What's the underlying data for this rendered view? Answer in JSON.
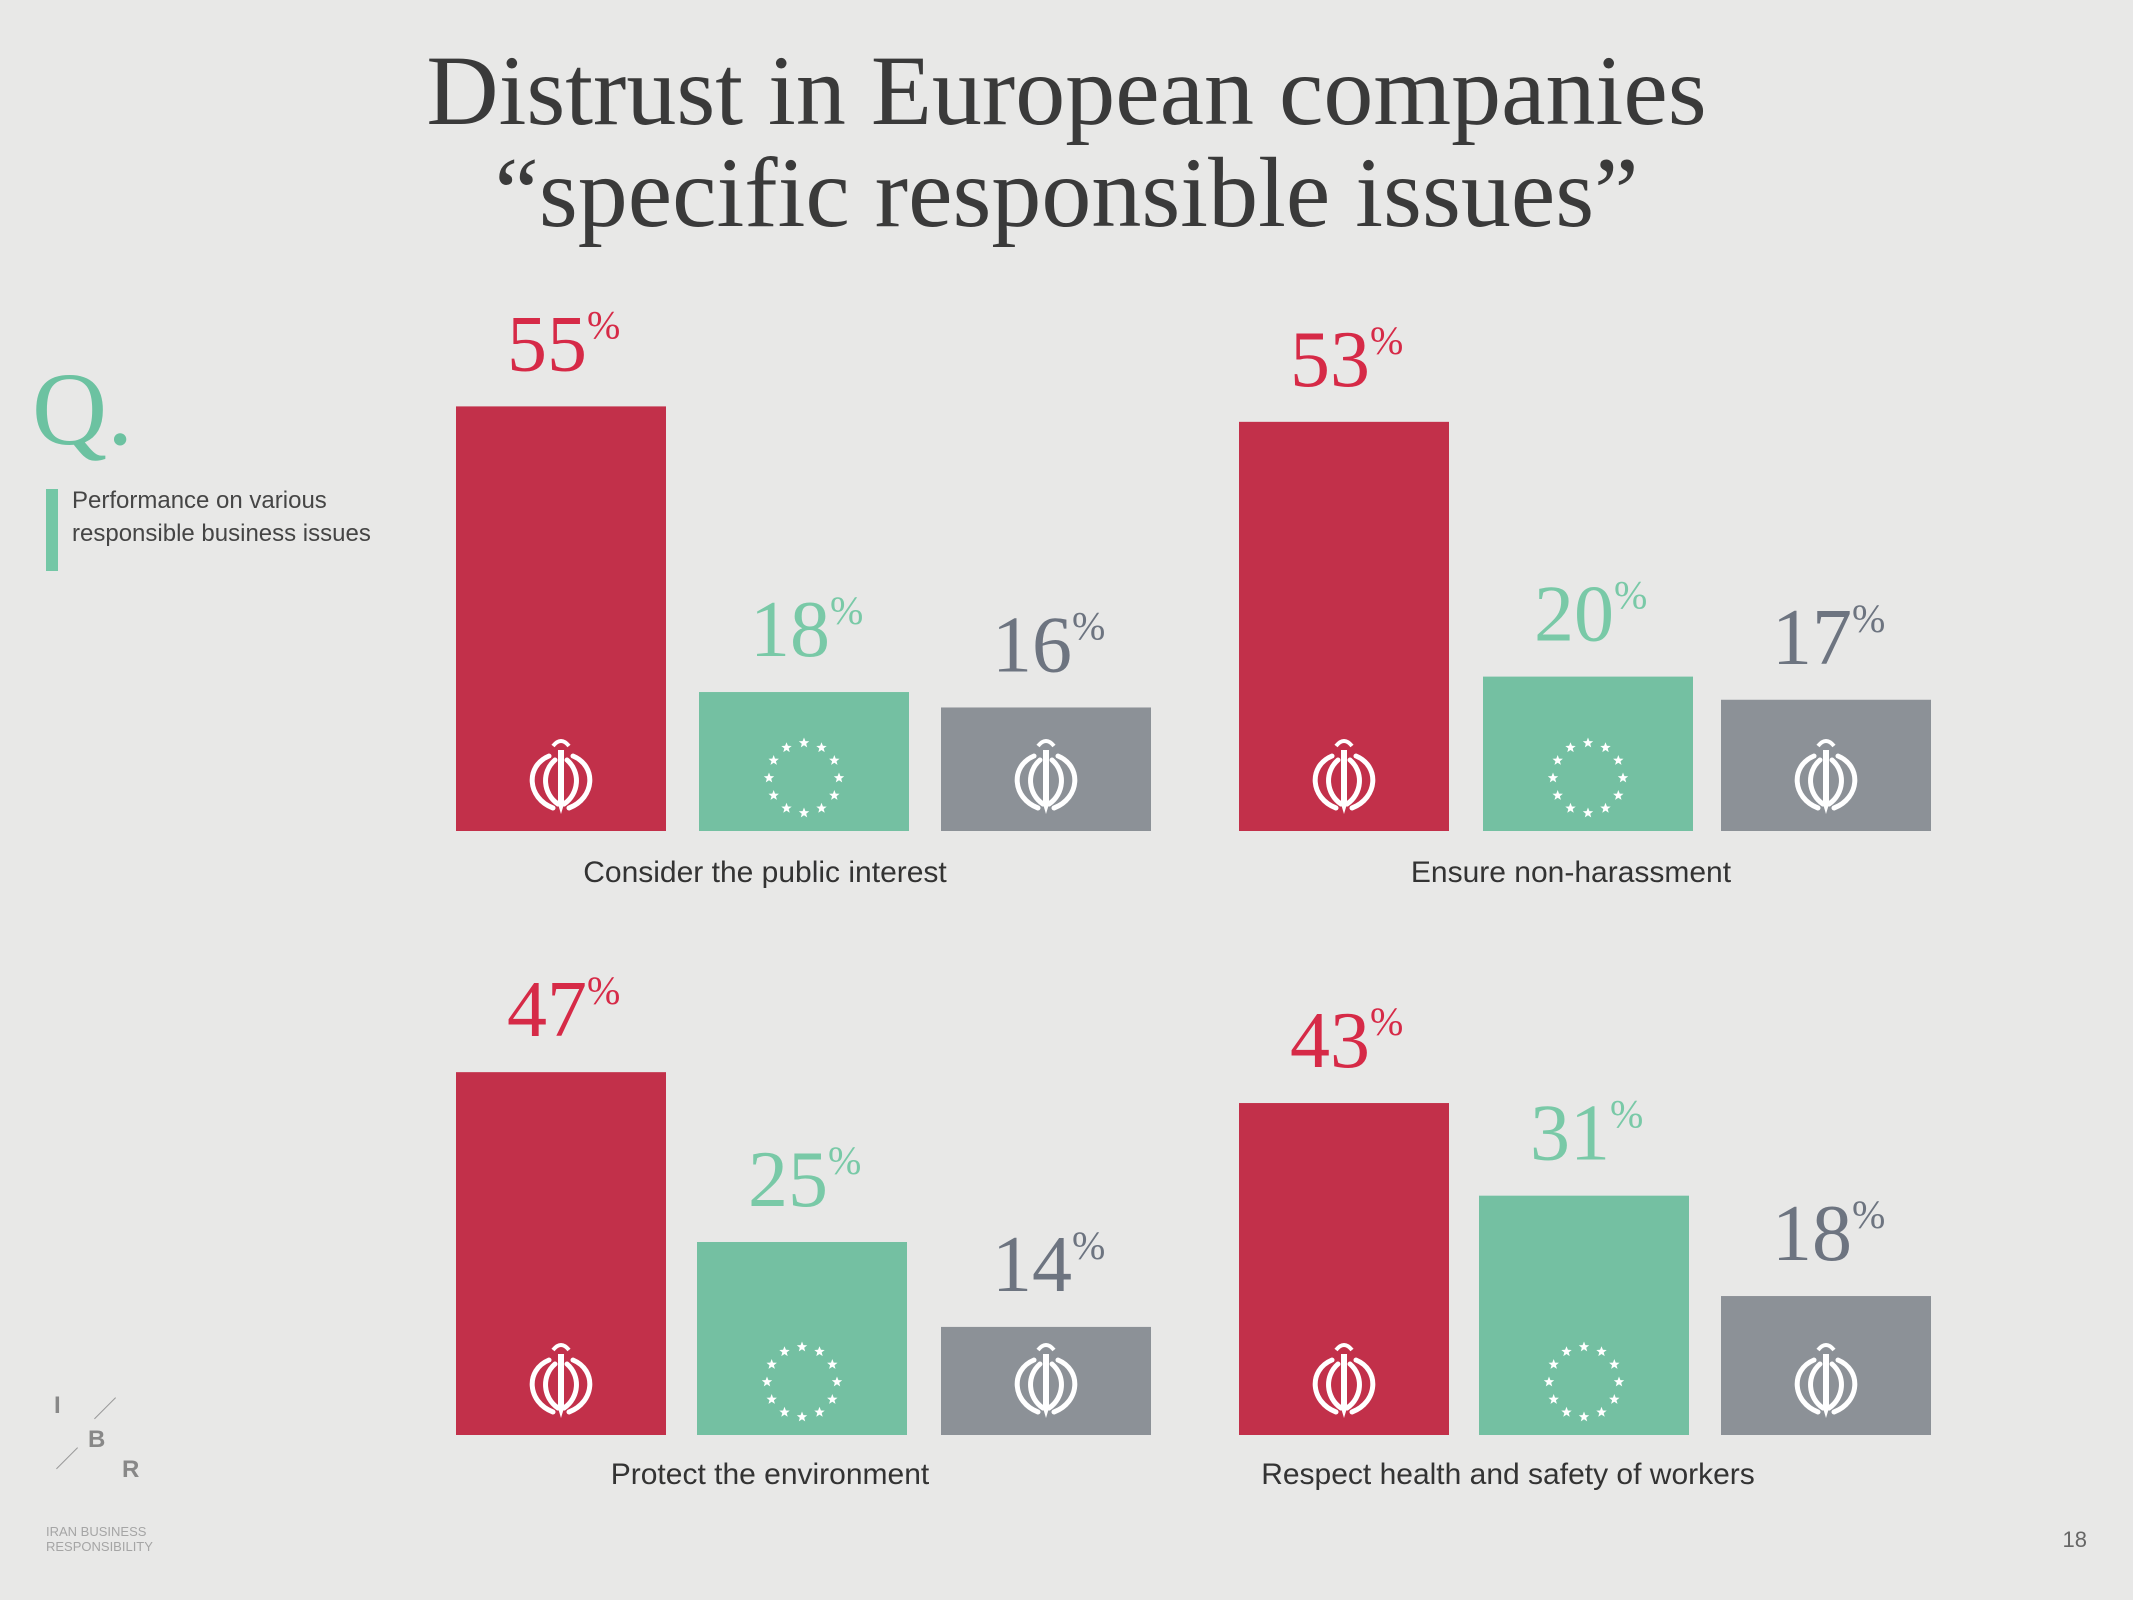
{
  "title": {
    "line1": "Distrust in European companies",
    "line2": "“specific responsible issues”"
  },
  "question": {
    "mark": "Q.",
    "text": "Performance on various responsible business issues"
  },
  "colors": {
    "iran": "#c2304a",
    "eu": "#74c0a2",
    "other": "#8c9197",
    "iran_label": "#d62a47",
    "eu_label": "#79c9a7",
    "other_label": "#6d7480"
  },
  "chart_data": [
    {
      "type": "bar",
      "title": "Consider the public interest",
      "categories": [
        "iran-flag-icon",
        "eu-flag-icon",
        "iran-flag-icon"
      ],
      "values": [
        55,
        18,
        16
      ],
      "unit": "%",
      "ylim": [
        0,
        60
      ]
    },
    {
      "type": "bar",
      "title": "Ensure non-harassment",
      "categories": [
        "iran-flag-icon",
        "eu-flag-icon",
        "iran-flag-icon"
      ],
      "values": [
        53,
        20,
        17
      ],
      "unit": "%",
      "ylim": [
        0,
        60
      ]
    },
    {
      "type": "bar",
      "title": "Protect the environment",
      "categories": [
        "iran-flag-icon",
        "eu-flag-icon",
        "iran-flag-icon"
      ],
      "values": [
        47,
        25,
        14
      ],
      "unit": "%",
      "ylim": [
        0,
        60
      ]
    },
    {
      "type": "bar",
      "title": "Respect health and safety of workers",
      "categories": [
        "iran-flag-icon",
        "eu-flag-icon",
        "iran-flag-icon"
      ],
      "values": [
        43,
        31,
        18
      ],
      "unit": "%",
      "ylim": [
        0,
        60
      ]
    }
  ],
  "logo": {
    "letters": [
      "I",
      "B",
      "R"
    ],
    "subtitle_line1": "IRAN BUSINESS",
    "subtitle_line2": "RESPONSIBILITY"
  },
  "page_number": "18"
}
